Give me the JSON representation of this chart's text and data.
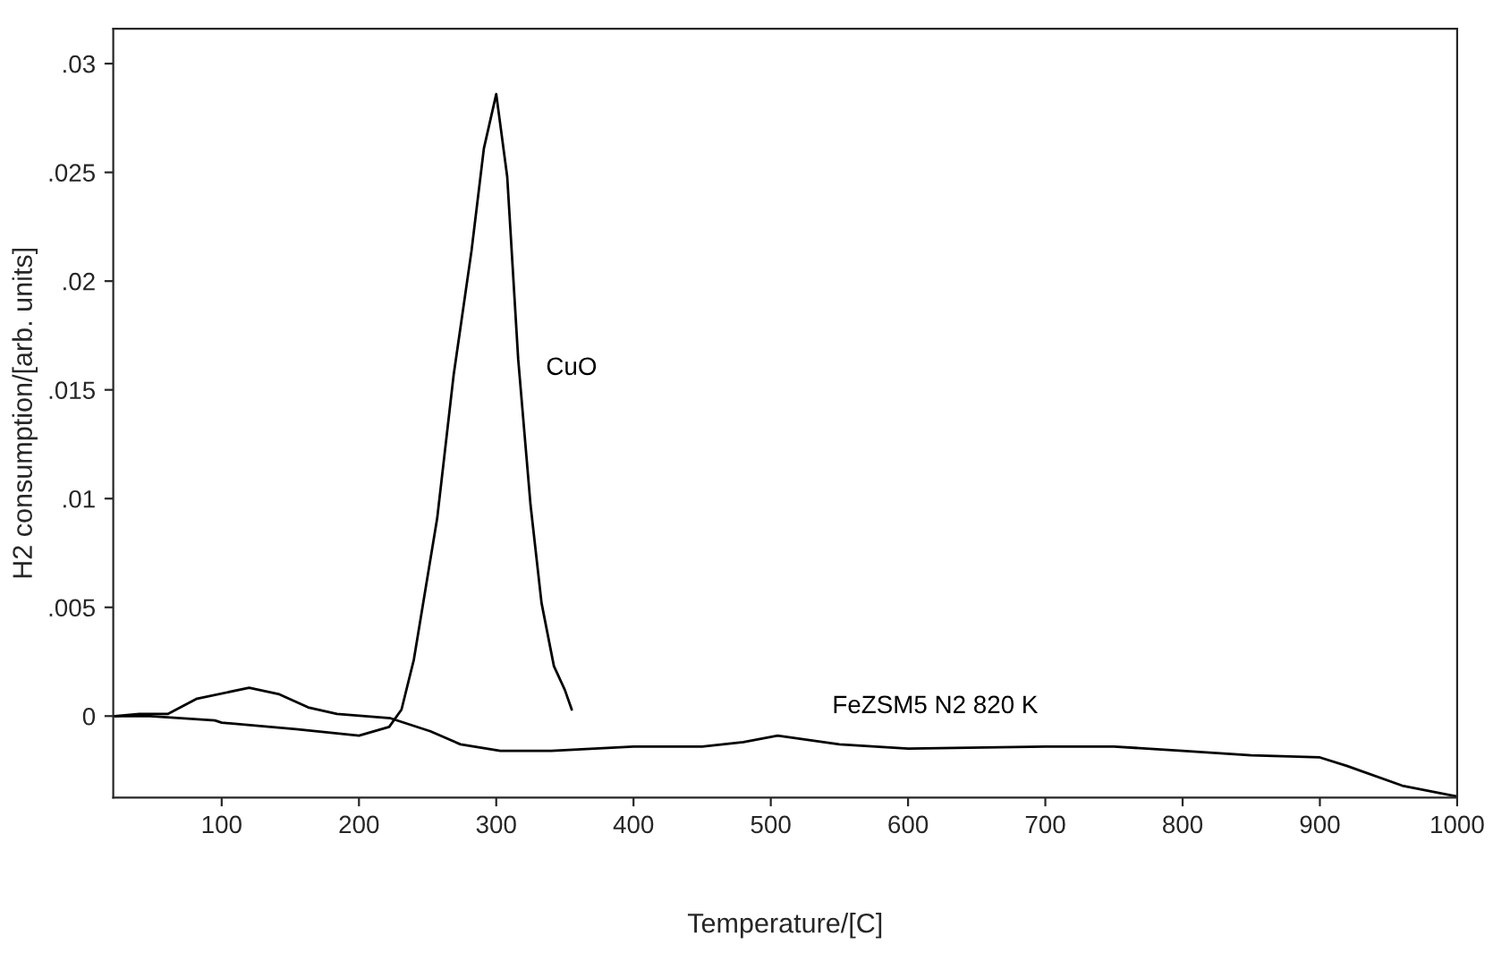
{
  "chart_data": {
    "type": "line",
    "xlabel": "Temperature/[C]",
    "ylabel": "H2 consumption/[arb. units]",
    "xlim": [
      21,
      1000
    ],
    "ylim": [
      -0.00375,
      0.0316
    ],
    "xticks": [
      100,
      200,
      300,
      400,
      500,
      600,
      700,
      800,
      900,
      1000
    ],
    "yticks": [
      {
        "value": 0,
        "label": "0"
      },
      {
        "value": 0.005,
        "label": ".005"
      },
      {
        "value": 0.01,
        "label": ".01"
      },
      {
        "value": 0.015,
        "label": ".015"
      },
      {
        "value": 0.02,
        "label": ".02"
      },
      {
        "value": 0.025,
        "label": ".025"
      },
      {
        "value": 0.03,
        "label": ".03"
      }
    ],
    "grid": false,
    "legend": false,
    "marker": "none",
    "line_style": "solid",
    "series": [
      {
        "name": "CuO",
        "color": "#000000",
        "x": [
          22,
          48,
          95,
          100,
          154,
          200,
          222,
          231,
          240,
          257,
          269,
          282,
          291,
          300,
          308,
          316,
          325,
          333,
          342,
          350,
          355
        ],
        "values": [
          0,
          0,
          -0.0002,
          -0.0003,
          -0.0006,
          -0.0009,
          -0.0005,
          0.0003,
          0.0026,
          0.0091,
          0.0157,
          0.0214,
          0.0261,
          0.0286,
          0.0248,
          0.0164,
          0.0097,
          0.0052,
          0.0023,
          0.0012,
          0.0003
        ]
      },
      {
        "name": "FeZSM5 N2 820 K",
        "color": "#000000",
        "x": [
          22,
          40,
          61,
          82,
          120,
          142,
          163,
          184,
          223,
          252,
          274,
          303,
          340,
          400,
          450,
          480,
          505,
          550,
          600,
          700,
          750,
          800,
          850,
          900,
          920,
          960,
          1000
        ],
        "values": [
          0,
          0.0001,
          0.0001,
          0.0008,
          0.0013,
          0.001,
          0.0004,
          0.0001,
          -0.0001,
          -0.0007,
          -0.0013,
          -0.0016,
          -0.0016,
          -0.0014,
          -0.0014,
          -0.0012,
          -0.0009,
          -0.0013,
          -0.0015,
          -0.0014,
          -0.0014,
          -0.0016,
          -0.0018,
          -0.0019,
          -0.0023,
          -0.0032,
          -0.0037
        ]
      }
    ]
  }
}
